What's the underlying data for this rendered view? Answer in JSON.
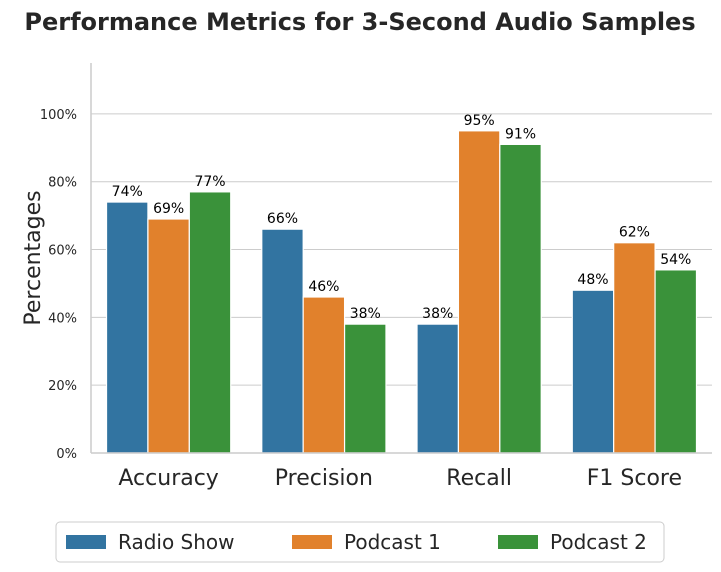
{
  "chart_data": {
    "type": "bar",
    "title": "Performance Metrics for 3-Second Audio Samples",
    "xlabel": "",
    "ylabel": "Percentages",
    "ylim": [
      0,
      115
    ],
    "yticks": [
      0,
      20,
      40,
      60,
      80,
      100
    ],
    "ytick_labels": [
      "0%",
      "20%",
      "40%",
      "60%",
      "80%",
      "100%"
    ],
    "categories": [
      "Accuracy",
      "Precision",
      "Recall",
      "F1 Score"
    ],
    "series": [
      {
        "name": "Radio Show",
        "color": "#3274a1",
        "values": [
          74,
          66,
          38,
          48
        ],
        "labels": [
          "74%",
          "66%",
          "38%",
          "48%"
        ]
      },
      {
        "name": "Podcast 1",
        "color": "#e1812c",
        "values": [
          69,
          46,
          95,
          62
        ],
        "labels": [
          "69%",
          "46%",
          "95%",
          "62%"
        ]
      },
      {
        "name": "Podcast 2",
        "color": "#3a923a",
        "values": [
          77,
          38,
          91,
          54
        ],
        "labels": [
          "77%",
          "38%",
          "91%",
          "54%"
        ]
      }
    ],
    "grid": "y",
    "legend_position": "bottom"
  }
}
